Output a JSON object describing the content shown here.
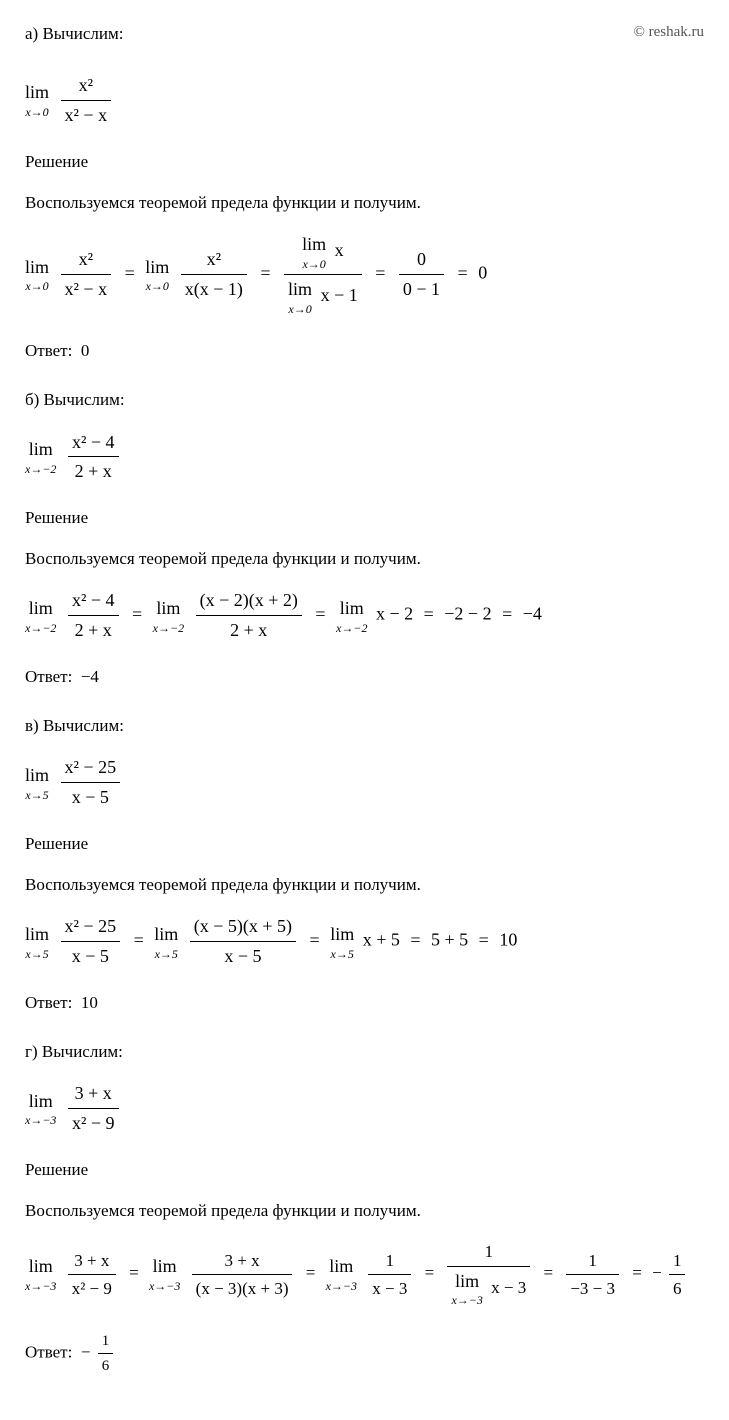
{
  "copyright": "© reshak.ru",
  "solution_label": "Решение",
  "theorem_text": "Воспользуемся теоремой предела функции и получим.",
  "answer_label": "Ответ:",
  "lim_word": "lim",
  "problems": {
    "a": {
      "label": "а) Вычислим:",
      "expr_num": "x²",
      "expr_den": "x² − x",
      "limit": "x→0",
      "step1_num": "x²",
      "step1_den": "x(x − 1)",
      "step2_top_lim": "x→0",
      "step2_top_expr": "x",
      "step2_bot_lim": "x→0",
      "step2_bot_expr": "x − 1",
      "step3_num": "0",
      "step3_den": "0 − 1",
      "result": "0",
      "answer": "0"
    },
    "b": {
      "label": "б) Вычислим:",
      "expr_num": "x² − 4",
      "expr_den": "2 + x",
      "limit": "x→−2",
      "step1_num": "(x − 2)(x + 2)",
      "step1_den": "2 + x",
      "step2_expr": "x − 2",
      "step3": "−2 − 2",
      "result": "−4",
      "answer": "−4"
    },
    "c": {
      "label": "в) Вычислим:",
      "expr_num": "x² − 25",
      "expr_den": "x − 5",
      "limit": "x→5",
      "step1_num": "(x − 5)(x + 5)",
      "step1_den": "x − 5",
      "step2_expr": "x + 5",
      "step3": "5 + 5",
      "result": "10",
      "answer": "10"
    },
    "d": {
      "label": "г) Вычислим:",
      "expr_num": "3 + x",
      "expr_den": "x² − 9",
      "limit": "x→−3",
      "step1_num": "3 + x",
      "step1_den": "(x − 3)(x + 3)",
      "step2_num": "1",
      "step2_den": "x − 3",
      "step3_top": "1",
      "step3_bot_lim": "x→−3",
      "step3_bot_expr": "x − 3",
      "step4_num": "1",
      "step4_den": "−3 − 3",
      "result_num": "1",
      "result_den": "6",
      "result_sign": "−",
      "answer_sign": "−",
      "answer_num": "1",
      "answer_den": "6"
    }
  },
  "styling": {
    "font_family": "Georgia, serif",
    "body_font_size": 17,
    "math_font_size": 18,
    "lim_sub_font_size": 12,
    "text_color": "#000000",
    "background": "#ffffff",
    "copyright_color": "#555555",
    "fraction_border": "1.5px solid #000"
  }
}
